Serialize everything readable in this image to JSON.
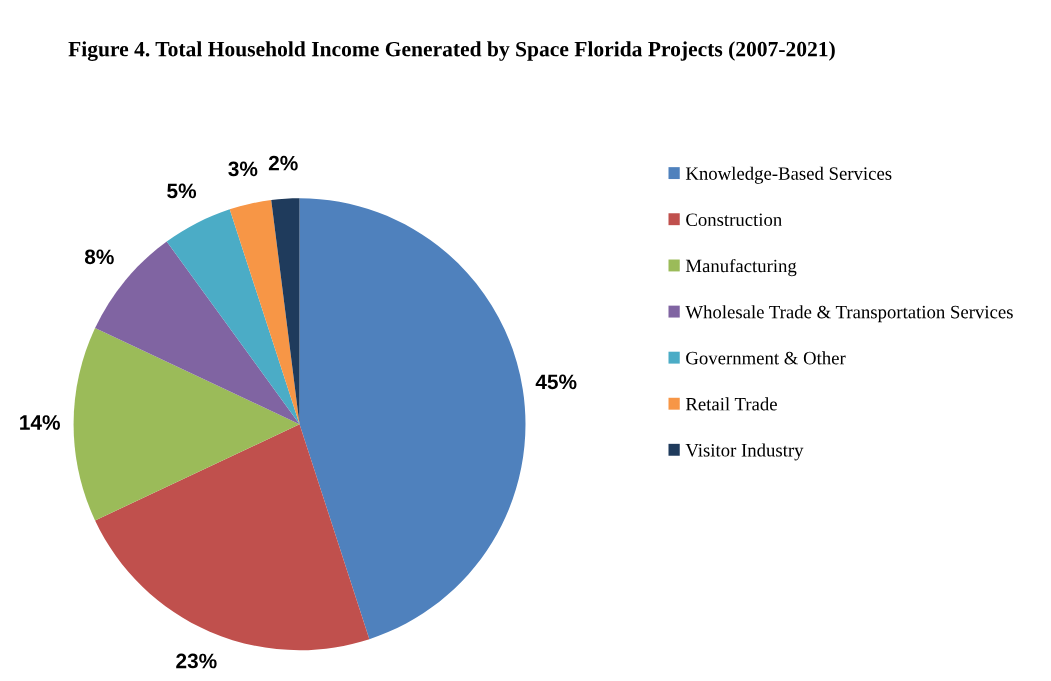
{
  "chart_data": {
    "type": "pie",
    "title": "Figure 4. Total Household Income Generated by Space Florida Projects (2007-2021)",
    "categories": [
      "Knowledge-Based Services",
      "Construction",
      "Manufacturing",
      "Wholesale Trade & Transportation Services",
      "Government & Other",
      "Retail Trade",
      "Visitor Industry"
    ],
    "values": [
      45,
      23,
      14,
      8,
      5,
      3,
      2
    ],
    "colors": [
      "#4f81bd",
      "#c0504d",
      "#9bbb59",
      "#8064a2",
      "#4bacc6",
      "#f79646",
      "#1f3b5c"
    ],
    "value_labels": [
      "45%",
      "23%",
      "14%",
      "8%",
      "5%",
      "3%",
      "2%"
    ],
    "legend": "right"
  }
}
